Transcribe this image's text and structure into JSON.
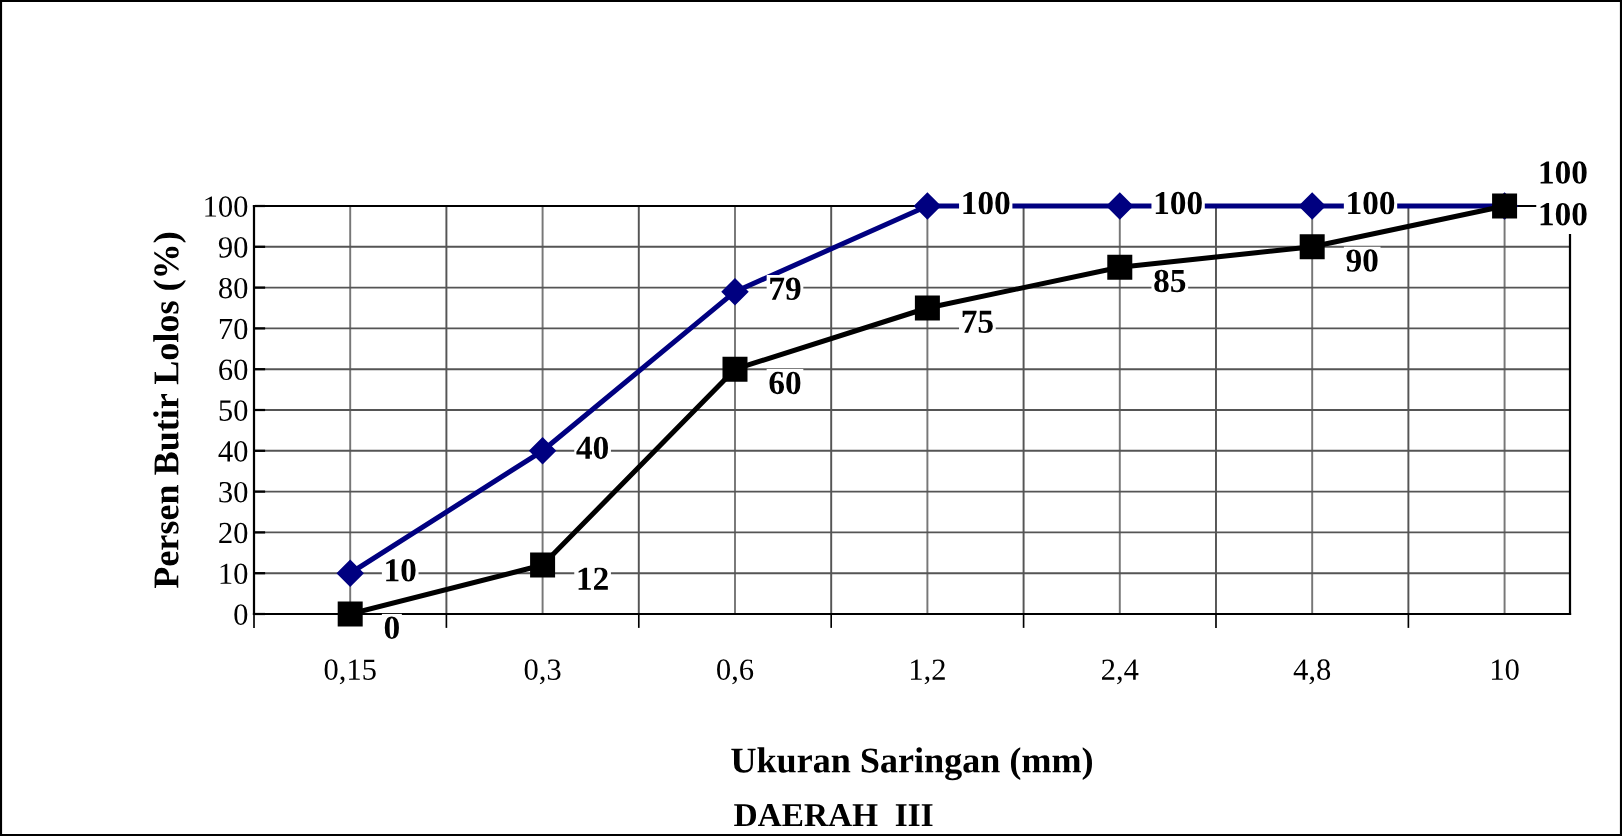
{
  "chart_data": {
    "type": "line",
    "title": "DAERAH  III",
    "xlabel": "Ukuran Saringan (mm)",
    "ylabel": "Persen Butir Lolos (%)",
    "categories": [
      "0,15",
      "0,3",
      "0,6",
      "1,2",
      "2,4",
      "4,8",
      "10"
    ],
    "series": [
      {
        "color": "#000080",
        "marker": "diamond",
        "values": [
          10,
          40,
          79,
          100,
          100,
          100,
          100
        ]
      },
      {
        "color": "#000000",
        "marker": "square",
        "values": [
          0,
          12,
          60,
          75,
          85,
          90,
          100
        ]
      }
    ],
    "ylim": [
      0,
      100
    ],
    "yticks": [
      0,
      10,
      20,
      30,
      40,
      50,
      60,
      70,
      80,
      90,
      100
    ],
    "grid": true,
    "data_labels": true,
    "line_style": "solid"
  }
}
